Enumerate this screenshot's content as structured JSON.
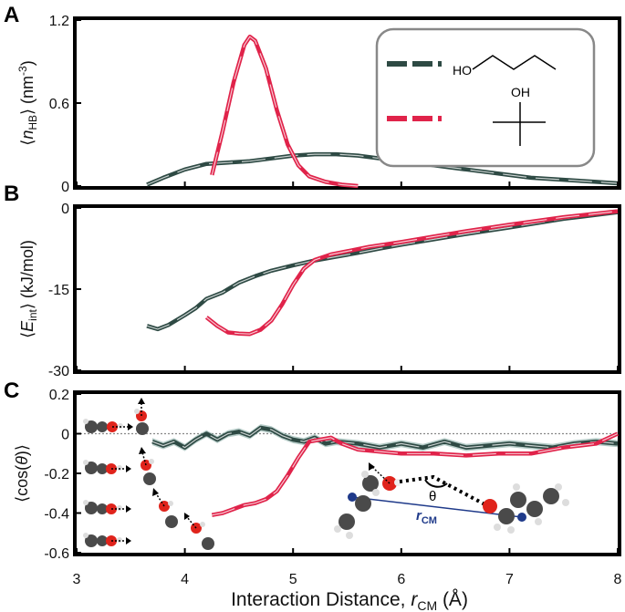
{
  "colors": {
    "butanol": "#2e4a44",
    "tbutanol": "#e0234a",
    "highlight": "#ffffff",
    "band": "#7aa39a",
    "oxygen": "#e0231b",
    "carbon": "#4a4a4a",
    "rcm": "#1f3a8a"
  },
  "xaxis": {
    "label_prefix": "Interaction Distance, ",
    "label_var": "r",
    "label_sub": "CM",
    "label_unit": " (Å)",
    "range": [
      3,
      8
    ],
    "ticks": [
      3,
      4,
      5,
      6,
      7,
      8
    ],
    "tick_labels": [
      "3",
      "4",
      "5",
      "6",
      "7",
      "8"
    ]
  },
  "legend": {
    "series_1": "1-butanol",
    "series_2": "tert-butanol",
    "ho": "HO",
    "oh": "OH"
  },
  "annotations": {
    "theta": "θ",
    "r": "r",
    "cm": "CM"
  },
  "chart_data": [
    {
      "panel": "A",
      "type": "line",
      "ylabel_parts": [
        "⟨",
        "n",
        "HB",
        "⟩ (nm",
        "-3",
        ")"
      ],
      "ylim": [
        0,
        1.2
      ],
      "yticks": [
        0,
        0.6,
        1.2
      ],
      "ytick_labels": [
        "0",
        "0.6",
        "1.2"
      ],
      "series": [
        {
          "name": "1-butanol",
          "x": [
            3.65,
            3.8,
            4.0,
            4.2,
            4.4,
            4.6,
            4.8,
            5.0,
            5.2,
            5.4,
            5.6,
            5.8,
            6.0,
            6.2,
            6.4,
            6.6,
            6.8,
            7.0,
            7.2,
            7.4,
            7.6,
            7.8,
            8.0
          ],
          "y": [
            0.01,
            0.06,
            0.12,
            0.16,
            0.17,
            0.18,
            0.2,
            0.22,
            0.23,
            0.23,
            0.22,
            0.2,
            0.18,
            0.16,
            0.14,
            0.12,
            0.1,
            0.08,
            0.06,
            0.05,
            0.04,
            0.03,
            0.02
          ]
        },
        {
          "name": "tert-butanol",
          "x": [
            4.25,
            4.35,
            4.45,
            4.55,
            4.6,
            4.65,
            4.75,
            4.85,
            4.95,
            5.05,
            5.15,
            5.3,
            5.45,
            5.6
          ],
          "y": [
            0.08,
            0.4,
            0.75,
            1.02,
            1.08,
            1.05,
            0.85,
            0.55,
            0.3,
            0.15,
            0.07,
            0.03,
            0.01,
            0.0
          ]
        }
      ]
    },
    {
      "panel": "B",
      "type": "line",
      "ylabel_parts": [
        "⟨",
        "E",
        "int",
        "⟩ (kJ/mol)"
      ],
      "ylim": [
        -30,
        0
      ],
      "yticks": [
        -30,
        -15,
        0
      ],
      "ytick_labels": [
        "-30",
        "-15",
        "0"
      ],
      "series": [
        {
          "name": "1-butanol",
          "x": [
            3.65,
            3.75,
            3.85,
            4.0,
            4.1,
            4.2,
            4.35,
            4.5,
            4.65,
            4.8,
            5.0,
            5.2,
            5.4,
            5.6,
            5.8,
            6.0,
            6.3,
            6.6,
            7.0,
            7.5,
            8.0
          ],
          "y": [
            -21.8,
            -22.4,
            -21.6,
            -19.8,
            -18.5,
            -16.8,
            -15.6,
            -13.8,
            -12.6,
            -11.6,
            -10.6,
            -9.7,
            -9.0,
            -8.3,
            -7.5,
            -6.8,
            -5.8,
            -4.8,
            -3.6,
            -2.0,
            -0.8
          ]
        },
        {
          "name": "tert-butanol",
          "x": [
            4.2,
            4.3,
            4.4,
            4.5,
            4.6,
            4.7,
            4.8,
            4.9,
            5.0,
            5.1,
            5.2,
            5.35,
            5.5,
            5.7,
            6.0,
            6.3,
            6.6,
            7.0,
            7.5,
            8.0
          ],
          "y": [
            -20.2,
            -21.8,
            -23.0,
            -23.2,
            -23.3,
            -22.5,
            -20.8,
            -17.8,
            -14.2,
            -11.2,
            -9.6,
            -8.6,
            -8.0,
            -7.2,
            -6.3,
            -5.3,
            -4.3,
            -3.1,
            -1.7,
            -0.6
          ]
        }
      ]
    },
    {
      "panel": "C",
      "type": "line",
      "ylabel_parts": [
        "⟨cos(",
        "θ",
        ")⟩"
      ],
      "ylim": [
        -0.6,
        0.2
      ],
      "yticks": [
        -0.6,
        -0.4,
        -0.2,
        0,
        0.2
      ],
      "ytick_labels": [
        "-0.6",
        "-0.4",
        "-0.2",
        "0",
        "0.2"
      ],
      "reference_line": 0,
      "series": [
        {
          "name": "1-butanol",
          "x": [
            3.7,
            3.8,
            3.9,
            4.0,
            4.1,
            4.2,
            4.3,
            4.4,
            4.5,
            4.6,
            4.7,
            4.8,
            4.9,
            5.0,
            5.1,
            5.2,
            5.3,
            5.4,
            5.6,
            5.8,
            6.0,
            6.2,
            6.4,
            6.6,
            6.8,
            7.0,
            7.2,
            7.4,
            7.6,
            7.8,
            8.0
          ],
          "y": [
            -0.04,
            -0.06,
            -0.04,
            -0.07,
            -0.03,
            0.0,
            -0.03,
            0.0,
            0.01,
            -0.01,
            0.03,
            0.02,
            -0.01,
            -0.03,
            -0.04,
            -0.02,
            -0.05,
            -0.04,
            -0.05,
            -0.07,
            -0.05,
            -0.07,
            -0.04,
            -0.07,
            -0.06,
            -0.05,
            -0.06,
            -0.07,
            -0.05,
            -0.04,
            -0.05
          ]
        },
        {
          "name": "tert-butanol",
          "x": [
            4.25,
            4.35,
            4.45,
            4.55,
            4.65,
            4.75,
            4.85,
            4.95,
            5.05,
            5.15,
            5.25,
            5.35,
            5.45,
            5.6,
            5.8,
            6.0,
            6.3,
            6.6,
            6.9,
            7.2,
            7.5,
            7.8,
            8.0
          ],
          "y": [
            -0.41,
            -0.4,
            -0.38,
            -0.36,
            -0.35,
            -0.33,
            -0.29,
            -0.21,
            -0.12,
            -0.04,
            -0.03,
            -0.02,
            -0.05,
            -0.08,
            -0.09,
            -0.1,
            -0.1,
            -0.11,
            -0.1,
            -0.1,
            -0.07,
            -0.05,
            0.0
          ]
        }
      ]
    }
  ]
}
